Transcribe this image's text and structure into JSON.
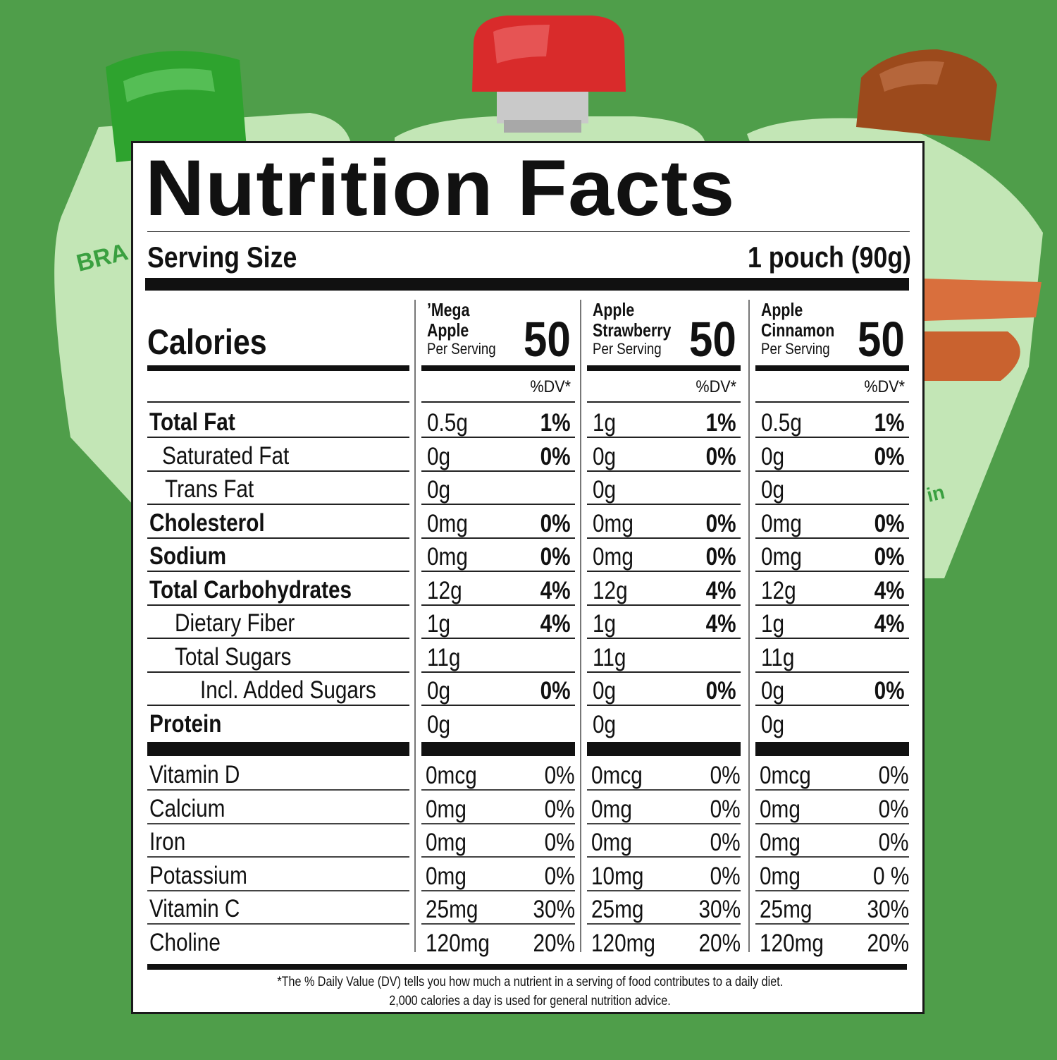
{
  "background": {
    "color": "#4f9e4a",
    "pouches": [
      {
        "name": "green",
        "cap_color": "#2ea32e",
        "body_color": "#c3e6b6",
        "peek_text": "BRA"
      },
      {
        "name": "red",
        "cap_color": "#d92b2b",
        "body_color": "#c3e6b6"
      },
      {
        "name": "brown",
        "cap_color": "#9c4a1c",
        "body_color": "#c3e6b6",
        "peek_text": "in"
      }
    ]
  },
  "label": {
    "title": "Nutrition Facts",
    "serving_size_label": "Serving Size",
    "serving_size_value": "1 pouch (90g)",
    "calories_label": "Calories",
    "dv_header": "%DV*",
    "products": [
      {
        "line1": "’Mega",
        "line2": "Apple",
        "per_serving": "Per Serving",
        "calories": "50"
      },
      {
        "line1": "Apple",
        "line2": "Strawberry",
        "per_serving": "Per Serving",
        "calories": "50"
      },
      {
        "line1": "Apple",
        "line2": "Cinnamon",
        "per_serving": "Per Serving",
        "calories": "50"
      }
    ],
    "nutrients": [
      {
        "name": "Total Fat",
        "values": [
          [
            "0.5g",
            "1%"
          ],
          [
            "1g",
            "1%"
          ],
          [
            "0.5g",
            "1%"
          ]
        ]
      },
      {
        "name": "Saturated Fat",
        "values": [
          [
            "0g",
            "0%"
          ],
          [
            "0g",
            "0%"
          ],
          [
            "0g",
            "0%"
          ]
        ]
      },
      {
        "name": "Trans Fat",
        "values": [
          [
            "0g",
            ""
          ],
          [
            "0g",
            ""
          ],
          [
            "0g",
            ""
          ]
        ]
      },
      {
        "name": "Cholesterol",
        "values": [
          [
            "0mg",
            "0%"
          ],
          [
            "0mg",
            "0%"
          ],
          [
            "0mg",
            "0%"
          ]
        ]
      },
      {
        "name": "Sodium",
        "values": [
          [
            "0mg",
            "0%"
          ],
          [
            "0mg",
            "0%"
          ],
          [
            "0mg",
            "0%"
          ]
        ]
      },
      {
        "name": "Total Carbohydrates",
        "values": [
          [
            "12g",
            "4%"
          ],
          [
            "12g",
            "4%"
          ],
          [
            "12g",
            "4%"
          ]
        ]
      },
      {
        "name": "Dietary Fiber",
        "values": [
          [
            "1g",
            "4%"
          ],
          [
            "1g",
            "4%"
          ],
          [
            "1g",
            "4%"
          ]
        ]
      },
      {
        "name": "Total Sugars",
        "values": [
          [
            "11g",
            ""
          ],
          [
            "11g",
            ""
          ],
          [
            "11g",
            ""
          ]
        ]
      },
      {
        "name": "Incl. Added Sugars",
        "values": [
          [
            "0g",
            "0%"
          ],
          [
            "0g",
            "0%"
          ],
          [
            "0g",
            "0%"
          ]
        ]
      },
      {
        "name": "Protein",
        "values": [
          [
            "0g",
            ""
          ],
          [
            "0g",
            ""
          ],
          [
            "0g",
            ""
          ]
        ]
      }
    ],
    "vitamins": [
      {
        "name": "Vitamin D",
        "values": [
          [
            "0mcg",
            "0%"
          ],
          [
            "0mcg",
            "0%"
          ],
          [
            "0mcg",
            "0%"
          ]
        ]
      },
      {
        "name": "Calcium",
        "values": [
          [
            "0mg",
            "0%"
          ],
          [
            "0mg",
            "0%"
          ],
          [
            "0mg",
            "0%"
          ]
        ]
      },
      {
        "name": "Iron",
        "values": [
          [
            "0mg",
            "0%"
          ],
          [
            "0mg",
            "0%"
          ],
          [
            "0mg",
            "0%"
          ]
        ]
      },
      {
        "name": "Potassium",
        "values": [
          [
            "0mg",
            "0%"
          ],
          [
            "10mg",
            "0%"
          ],
          [
            "0mg",
            "0 %"
          ]
        ]
      },
      {
        "name": "Vitamin C",
        "values": [
          [
            "25mg",
            "30%"
          ],
          [
            "25mg",
            "30%"
          ],
          [
            "25mg",
            "30%"
          ]
        ]
      },
      {
        "name": "Choline",
        "values": [
          [
            "120mg",
            "20%"
          ],
          [
            "120mg",
            "20%"
          ],
          [
            "120mg",
            "20%"
          ]
        ]
      }
    ],
    "footnote_line1": "*The % Daily Value (DV) tells you how much a nutrient in a serving of food contributes to a daily diet.",
    "footnote_line2": "2,000 calories a day is used for general nutrition advice."
  }
}
